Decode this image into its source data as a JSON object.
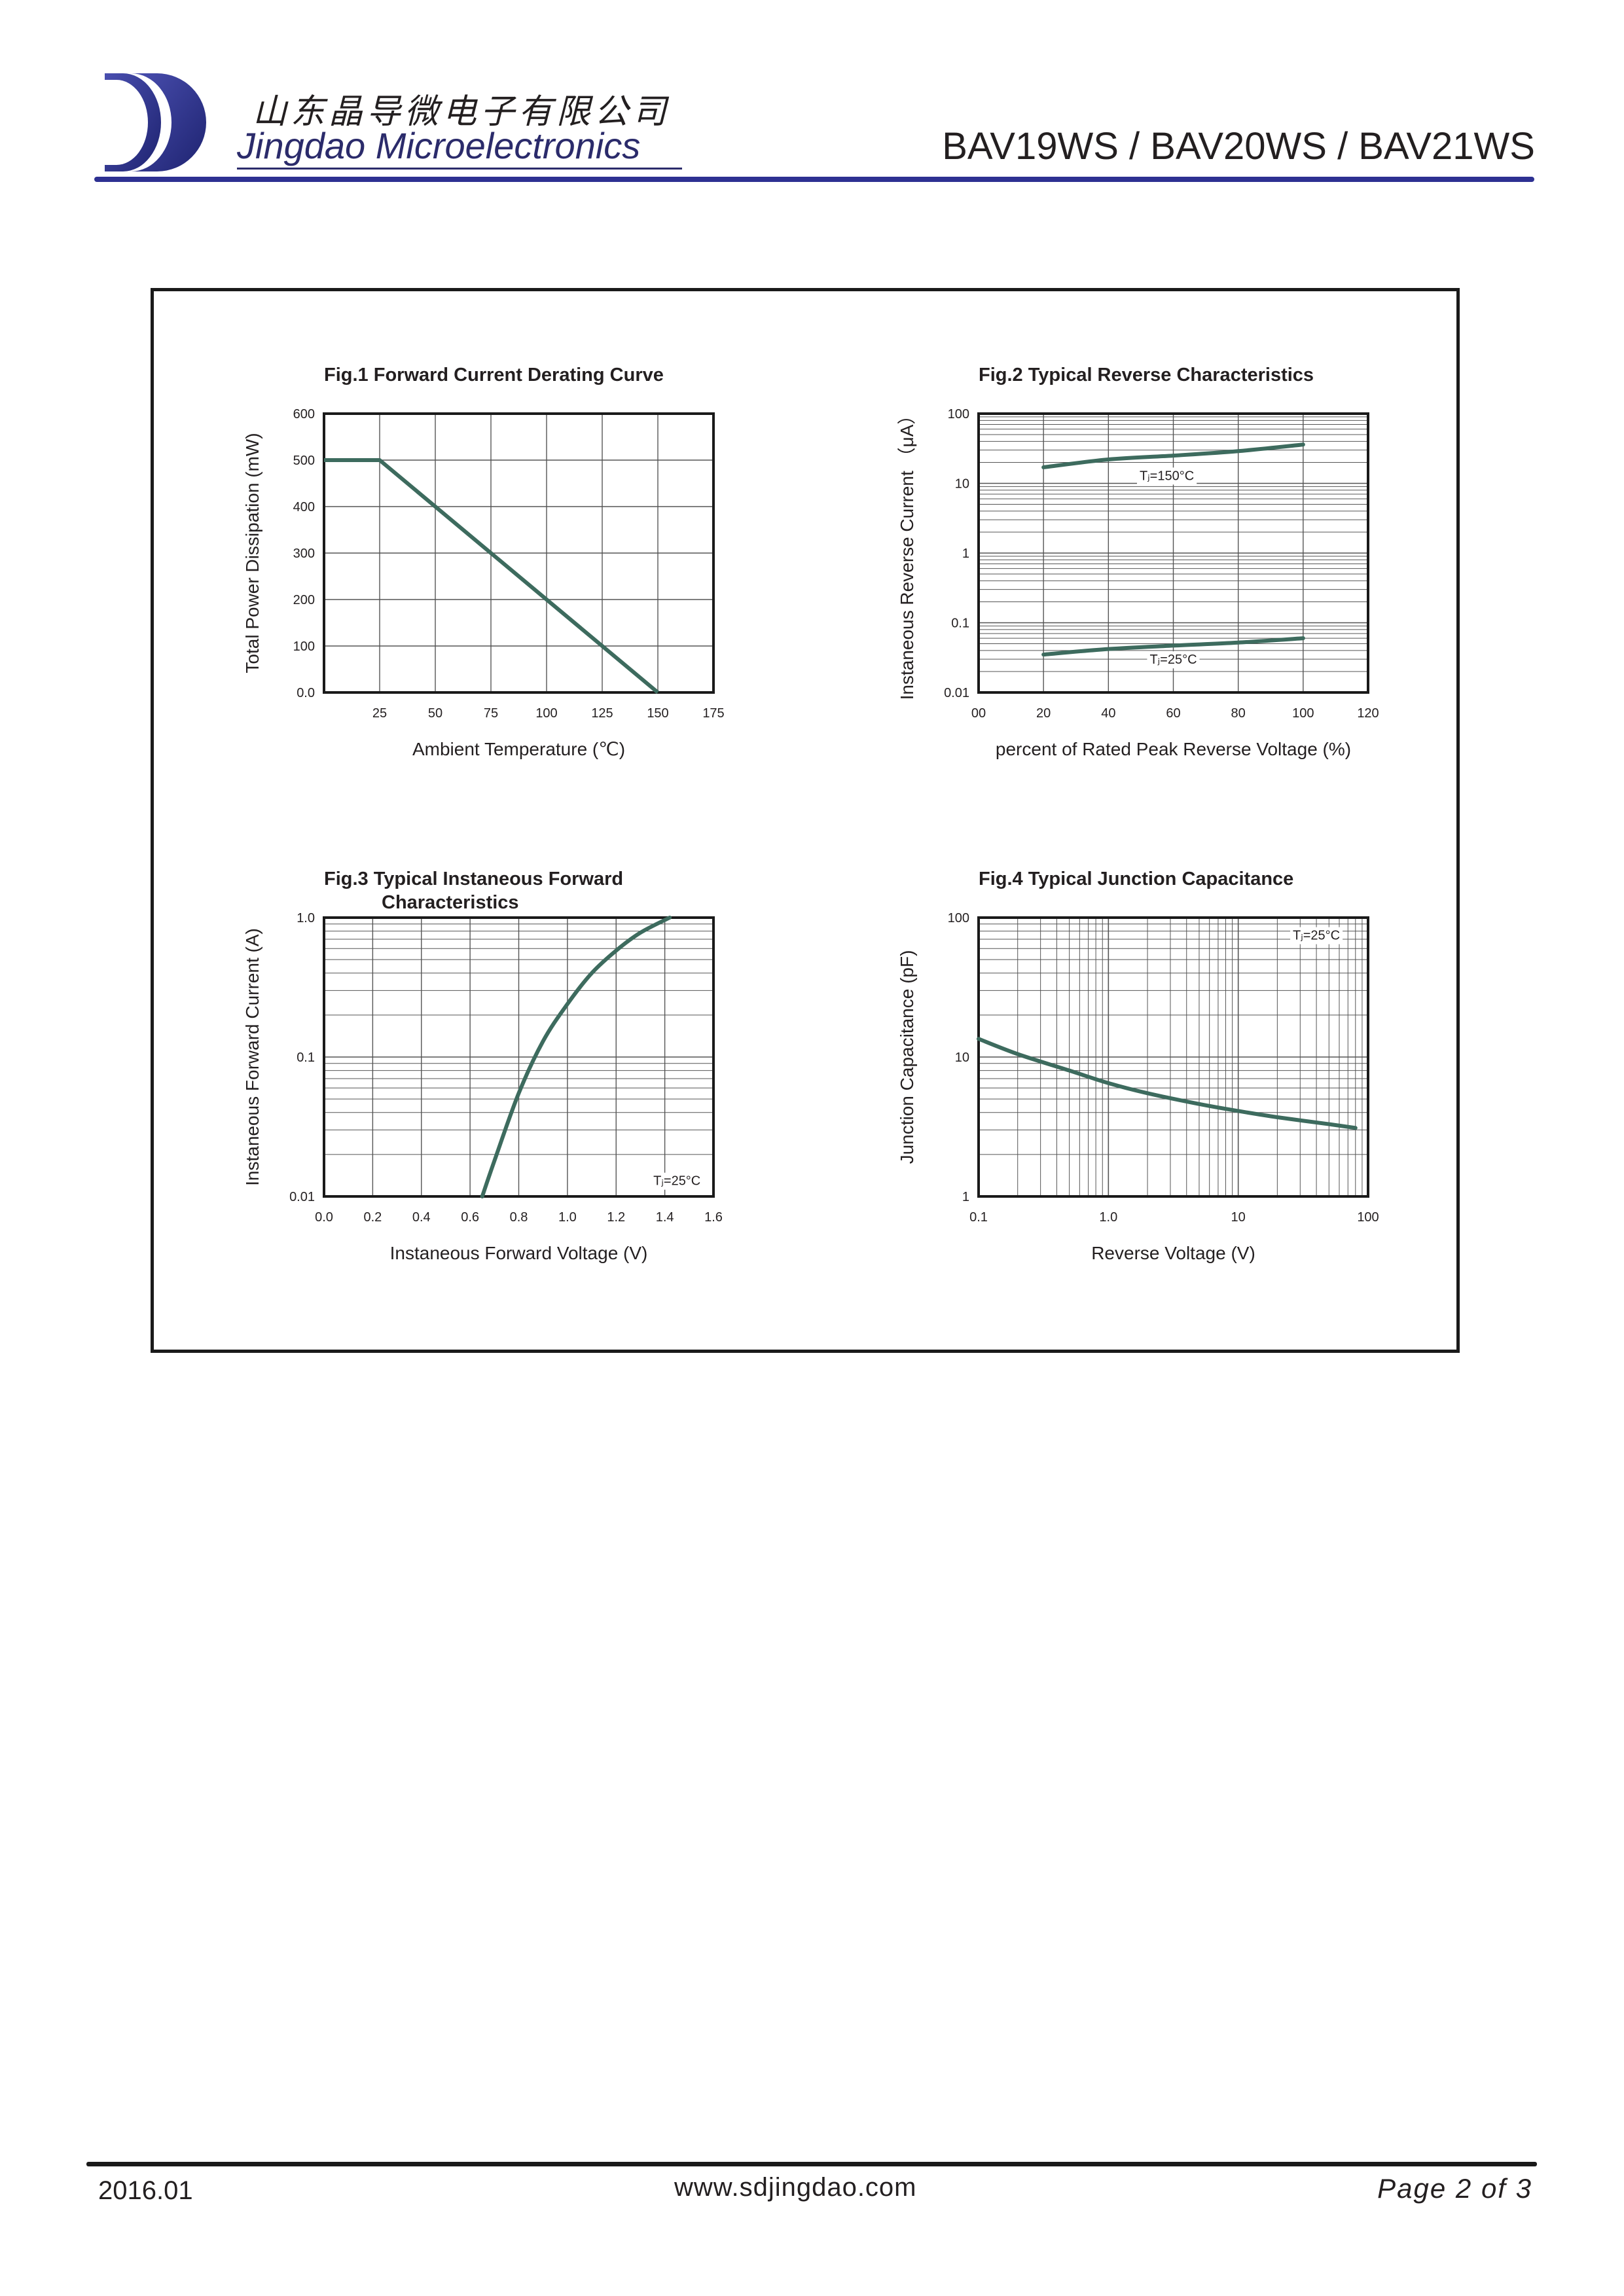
{
  "header": {
    "company_cn": "山东晶导微电子有限公司",
    "company_en": "Jingdao Microelectronics",
    "title": "BAV19WS / BAV20WS / BAV21WS",
    "colors": {
      "brand": "#2e3192",
      "curve": "#3d6b5e"
    }
  },
  "footer": {
    "date": "2016.01",
    "url": "www.sdjingdao.com",
    "page": "Page  2  of  3"
  },
  "chart_data": [
    {
      "id": "fig1",
      "type": "line",
      "title": "Fig.1  Forward Current Derating Curve",
      "xlabel": "Ambient Temperature (℃)",
      "ylabel": "Total Power Dissipation  (mW)",
      "xlim": [
        0,
        175
      ],
      "ylim": [
        0,
        600
      ],
      "x_scale": "linear",
      "y_scale": "linear",
      "xticks": [
        25,
        50,
        75,
        100,
        125,
        150,
        175
      ],
      "xtick_labels": [
        "25",
        "50",
        "75",
        "100",
        "125",
        "150",
        "175"
      ],
      "yticks": [
        0,
        100,
        200,
        300,
        400,
        500,
        600
      ],
      "ytick_labels": [
        "0.0",
        "100",
        "200",
        "300",
        "400",
        "500",
        "600"
      ],
      "grid": true,
      "series": [
        {
          "x": [
            0,
            25,
            150
          ],
          "y": [
            500,
            500,
            0
          ]
        }
      ],
      "annotations": []
    },
    {
      "id": "fig2",
      "type": "line",
      "title": "Fig.2  Typical Reverse Characteristics",
      "xlabel": "percent of Rated  Peak Reverse Voltage (%)",
      "ylabel": "Instaneous Reverse Current （μA）",
      "xlim": [
        0,
        120
      ],
      "ylim": [
        0.01,
        100
      ],
      "x_scale": "linear",
      "y_scale": "log",
      "xticks": [
        0,
        20,
        40,
        60,
        80,
        100,
        120
      ],
      "xtick_labels": [
        "00",
        "20",
        "40",
        "60",
        "80",
        "100",
        "120"
      ],
      "yticks": [
        0.01,
        0.1,
        1,
        10,
        100
      ],
      "ytick_labels": [
        "0.01",
        "0.1",
        "1",
        "10",
        "100"
      ],
      "grid": true,
      "series": [
        {
          "x": [
            20,
            40,
            60,
            80,
            100
          ],
          "y": [
            17,
            22,
            25,
            29,
            36
          ]
        },
        {
          "x": [
            20,
            40,
            60,
            80,
            100
          ],
          "y": [
            0.035,
            0.042,
            0.047,
            0.052,
            0.06
          ]
        }
      ],
      "annotations": [
        {
          "text": "Tⱼ=150°C",
          "x": 58,
          "y": 13
        },
        {
          "text": "Tⱼ=25°C",
          "x": 60,
          "y": 0.03
        }
      ]
    },
    {
      "id": "fig3",
      "type": "line",
      "title_lines": [
        "Fig.3  Typical Instaneous Forward",
        "Characteristics"
      ],
      "xlabel": "Instaneous Forward Voltage (V)",
      "ylabel": "Instaneous Forward Current (A)",
      "xlim": [
        0,
        1.6
      ],
      "ylim": [
        0.01,
        1.0
      ],
      "x_scale": "linear",
      "y_scale": "log",
      "xticks": [
        0,
        0.2,
        0.4,
        0.6,
        0.8,
        1.0,
        1.2,
        1.4,
        1.6
      ],
      "xtick_labels": [
        "0.0",
        "0.2",
        "0.4",
        "0.6",
        "0.8",
        "1.0",
        "1.2",
        "1.4",
        "1.6"
      ],
      "yticks": [
        0.01,
        0.1,
        1.0
      ],
      "ytick_labels": [
        "0.01",
        "0.1",
        "1.0"
      ],
      "grid": true,
      "series": [
        {
          "x": [
            0.65,
            0.7,
            0.8,
            0.9,
            1.0,
            1.1,
            1.2,
            1.3,
            1.42
          ],
          "y": [
            0.01,
            0.018,
            0.055,
            0.13,
            0.24,
            0.4,
            0.58,
            0.78,
            1.0
          ]
        }
      ],
      "annotations": [
        {
          "text": "Tⱼ=25°C",
          "x": 1.45,
          "y": 0.013
        }
      ]
    },
    {
      "id": "fig4",
      "type": "line",
      "title": "Fig.4  Typical Junction Capacitance",
      "xlabel": "Reverse  Voltage (V)",
      "ylabel": "Junction Capacitance (pF)",
      "xlim": [
        0.1,
        100
      ],
      "ylim": [
        1,
        100
      ],
      "x_scale": "log",
      "y_scale": "log",
      "xticks": [
        0.1,
        1,
        10,
        100
      ],
      "xtick_labels": [
        "0.1",
        "1.0",
        "10",
        "100"
      ],
      "yticks": [
        1,
        10,
        100
      ],
      "ytick_labels": [
        "1",
        "10",
        "100"
      ],
      "grid": true,
      "series": [
        {
          "x": [
            0.1,
            0.2,
            0.5,
            1,
            2,
            5,
            10,
            20,
            50,
            80
          ],
          "y": [
            13.5,
            10.5,
            8,
            6.5,
            5.5,
            4.6,
            4.1,
            3.7,
            3.3,
            3.1
          ]
        }
      ],
      "annotations": [
        {
          "text": "Tⱼ=25°C",
          "x": 40,
          "y": 75
        }
      ]
    }
  ]
}
